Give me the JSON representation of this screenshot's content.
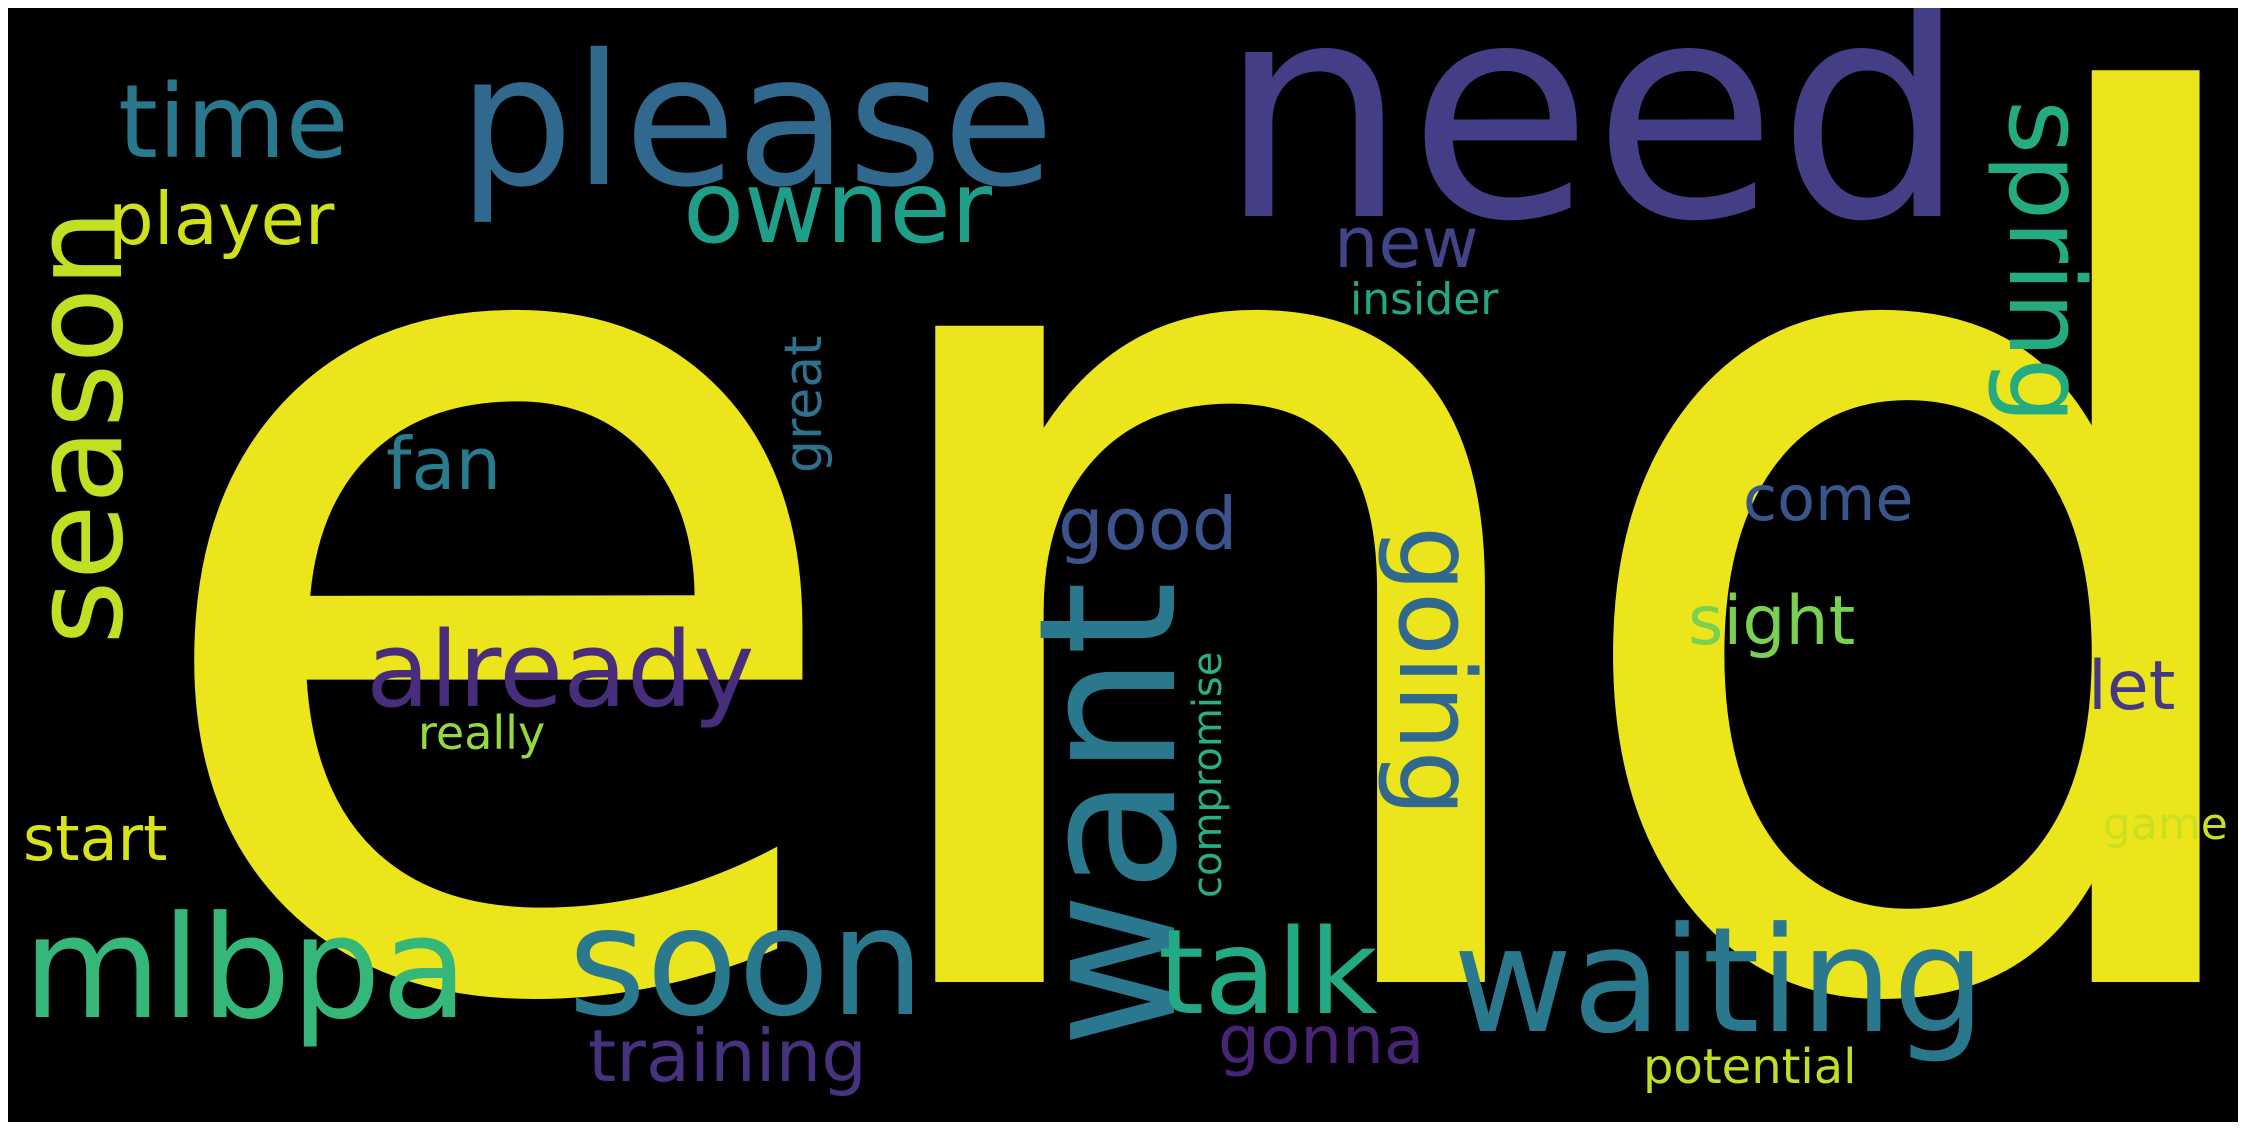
{
  "background_color": "#000000",
  "words": [
    {
      "id": "end",
      "text": "end",
      "color": "#ece51b"
    },
    {
      "id": "need",
      "text": "need",
      "color": "#433e85"
    },
    {
      "id": "please",
      "text": "please",
      "color": "#31688e"
    },
    {
      "id": "season",
      "text": "season",
      "color": "#c2df23"
    },
    {
      "id": "time",
      "text": "time",
      "color": "#2a788e"
    },
    {
      "id": "owner",
      "text": "owner",
      "color": "#1f9e89"
    },
    {
      "id": "spring",
      "text": "spring",
      "color": "#25ab82"
    },
    {
      "id": "player",
      "text": "player",
      "color": "#d0e11c"
    },
    {
      "id": "new",
      "text": "new",
      "color": "#414487"
    },
    {
      "id": "insider",
      "text": "insider",
      "color": "#22a884"
    },
    {
      "id": "great",
      "text": "great",
      "color": "#2c728e"
    },
    {
      "id": "fan",
      "text": "fan",
      "color": "#287c8e"
    },
    {
      "id": "good",
      "text": "good",
      "color": "#3b528b"
    },
    {
      "id": "come",
      "text": "come",
      "color": "#39568c"
    },
    {
      "id": "already",
      "text": "already",
      "color": "#472d7b"
    },
    {
      "id": "going",
      "text": "going",
      "color": "#31688e"
    },
    {
      "id": "sight",
      "text": "sight",
      "color": "#7ad151"
    },
    {
      "id": "want",
      "text": "want",
      "color": "#2a788e"
    },
    {
      "id": "let",
      "text": "let",
      "color": "#443983"
    },
    {
      "id": "compromise",
      "text": "compromise",
      "color": "#2ab07f"
    },
    {
      "id": "really",
      "text": "really",
      "color": "#95d840"
    },
    {
      "id": "start",
      "text": "start",
      "color": "#d8e219"
    },
    {
      "id": "game",
      "text": "game",
      "color": "#c8e020"
    },
    {
      "id": "mlbpa",
      "text": "mlbpa",
      "color": "#35b779"
    },
    {
      "id": "soon",
      "text": "soon",
      "color": "#2a788e"
    },
    {
      "id": "talk",
      "text": "talk",
      "color": "#23a983"
    },
    {
      "id": "waiting",
      "text": "waiting",
      "color": "#2a788e"
    },
    {
      "id": "training",
      "text": "training",
      "color": "#46327e"
    },
    {
      "id": "gonna",
      "text": "gonna",
      "color": "#482475"
    },
    {
      "id": "potential",
      "text": "potential",
      "color": "#bddf26"
    }
  ]
}
